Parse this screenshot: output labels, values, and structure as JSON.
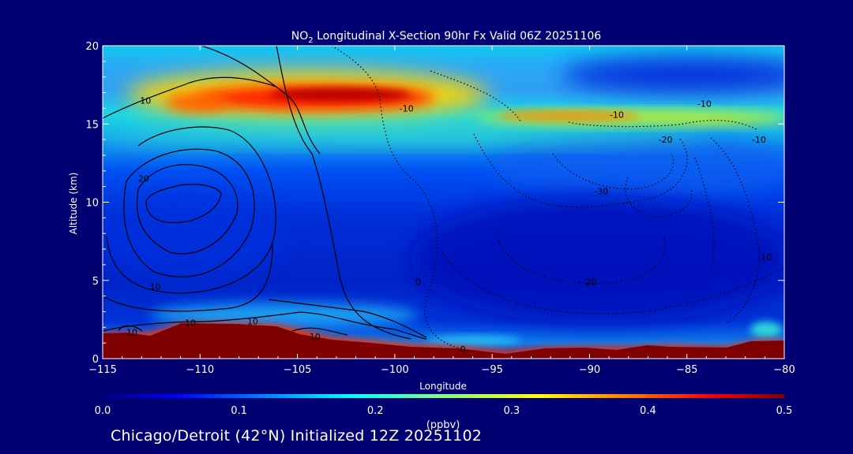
{
  "figure": {
    "background": "#000072",
    "footer": "Chicago/Detroit (42°N) Initialized 12Z 20251102"
  },
  "chart_data": {
    "type": "heatmap",
    "title_pre": "NO",
    "title_sub": "2",
    "title_post": " Longitudinal X-Section 90hr  Fx Valid 06Z 20251106",
    "xlabel": "Longitude",
    "ylabel": "Altitude (km)",
    "xlim": [
      -115,
      -80
    ],
    "ylim": [
      0,
      20
    ],
    "x_ticks": [
      -115,
      -110,
      -105,
      -100,
      -95,
      -90,
      -85,
      -80
    ],
    "x_tick_labels": [
      "−115",
      "−110",
      "−105",
      "−100",
      "−95",
      "−90",
      "−85",
      "−80"
    ],
    "y_ticks": [
      0,
      5,
      10,
      15,
      20
    ],
    "y_tick_labels": [
      "0",
      "5",
      "10",
      "15",
      "20"
    ],
    "colorbar": {
      "label": "(ppbv)",
      "min": 0.0,
      "max": 0.5,
      "ticks": [
        0.0,
        0.1,
        0.2,
        0.3,
        0.4,
        0.5
      ],
      "tick_labels": [
        "0.0",
        "0.1",
        "0.2",
        "0.3",
        "0.4",
        "0.5"
      ],
      "colormap": "jet"
    },
    "field_description_bands": [
      {
        "altitude_km": [
          16,
          17.5
        ],
        "lon_range": [
          -112,
          -99
        ],
        "value": 0.48
      },
      {
        "altitude_km": [
          15,
          16
        ],
        "lon_range": [
          -96,
          -84
        ],
        "value": 0.38
      },
      {
        "altitude_km": [
          14,
          18.5
        ],
        "lon_range": [
          -115,
          -80
        ],
        "value": 0.25
      },
      {
        "altitude_km": [
          0,
          12
        ],
        "lon_range": [
          -115,
          -80
        ],
        "value": 0.07
      }
    ],
    "terrain_km": [
      [
        -115,
        1.8
      ],
      [
        -113,
        1.7
      ],
      [
        -111,
        2.3
      ],
      [
        -108,
        2.3
      ],
      [
        -106,
        2.2
      ],
      [
        -104,
        1.6
      ],
      [
        -102,
        1.3
      ],
      [
        -100,
        0.9
      ],
      [
        -98,
        0.7
      ],
      [
        -96,
        0.5
      ],
      [
        -94,
        0.3
      ],
      [
        -92,
        0.5
      ],
      [
        -90,
        0.6
      ],
      [
        -88,
        0.5
      ],
      [
        -86,
        0.8
      ],
      [
        -84,
        0.7
      ],
      [
        -82,
        1.0
      ],
      [
        -80,
        1.1
      ]
    ],
    "contour_labels": [
      {
        "text": "10",
        "x": -112.8,
        "y": 16.5
      },
      {
        "text": "20",
        "x": -112.9,
        "y": 11.5
      },
      {
        "text": "10",
        "x": -112.3,
        "y": 4.6
      },
      {
        "text": "10",
        "x": -110.5,
        "y": 2.3
      },
      {
        "text": "10",
        "x": -107.3,
        "y": 2.4
      },
      {
        "text": "10",
        "x": -113.5,
        "y": 1.7
      },
      {
        "text": "10",
        "x": -104.1,
        "y": 1.4
      },
      {
        "text": "-10",
        "x": -99.4,
        "y": 16.0
      },
      {
        "text": "-10",
        "x": -88.6,
        "y": 15.6
      },
      {
        "text": "-10",
        "x": -84.1,
        "y": 16.3
      },
      {
        "text": "-20",
        "x": -86.1,
        "y": 14.0
      },
      {
        "text": "-10",
        "x": -81.3,
        "y": 14.0
      },
      {
        "text": "-30",
        "x": -89.4,
        "y": 10.7
      },
      {
        "text": "-20",
        "x": -90.0,
        "y": 4.9
      },
      {
        "text": "-10",
        "x": -81.0,
        "y": 6.5
      },
      {
        "text": "0",
        "x": -96.5,
        "y": 0.6
      },
      {
        "text": "0",
        "x": -98.8,
        "y": 4.9
      }
    ]
  }
}
